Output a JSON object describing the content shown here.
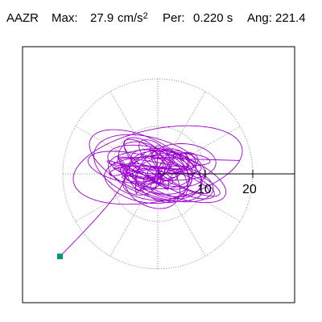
{
  "header": {
    "station": "AAZR",
    "max_label": "Max:",
    "max_value": "27.9",
    "max_unit": "cm/s",
    "max_unit_exp": "2",
    "per_label": "Per:",
    "per_value": "0.220 s",
    "ang_label": "Ang: 221.4"
  },
  "plot": {
    "ring_labels": [
      "10",
      "20"
    ],
    "trace_color": "#9900cc",
    "marker_color": "#00997a",
    "grid_color": "#888888"
  }
}
